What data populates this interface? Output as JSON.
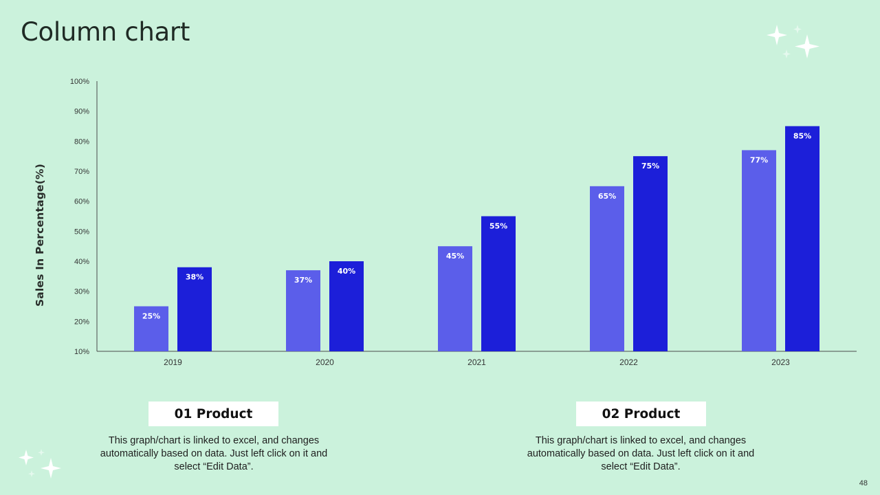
{
  "title": "Column chart",
  "page_number": "48",
  "colors": {
    "background": "#cbf2dc",
    "series1": "#5b5eea",
    "series2": "#1c1fd9",
    "axis": "#4a4a4a"
  },
  "chart_data": {
    "type": "bar",
    "title": "",
    "xlabel": "",
    "ylabel": "Sales In Percentage(%)",
    "ylim": [
      10,
      100
    ],
    "ytick_labels": [
      "10%",
      "20%",
      "30%",
      "40%",
      "50%",
      "60%",
      "70%",
      "80%",
      "90%",
      "100%"
    ],
    "categories": [
      "2019",
      "2020",
      "2021",
      "2022",
      "2023"
    ],
    "series": [
      {
        "values": [
          25,
          37,
          45,
          65,
          77
        ],
        "labels": [
          "25%",
          "37%",
          "45%",
          "65%",
          "77%"
        ]
      },
      {
        "values": [
          38,
          40,
          55,
          75,
          85
        ],
        "labels": [
          "38%",
          "40%",
          "55%",
          "75%",
          "85%"
        ]
      }
    ],
    "legend": "none",
    "grid": false
  },
  "products": [
    {
      "label": "01 Product",
      "description": "This graph/chart  is linked to excel, and changes automatically based on data. Just left click on it and select “Edit Data”."
    },
    {
      "label": "02 Product",
      "description": "This graph/chart  is linked to excel, and changes automatically based on data. Just left click on it and select “Edit Data”."
    }
  ]
}
